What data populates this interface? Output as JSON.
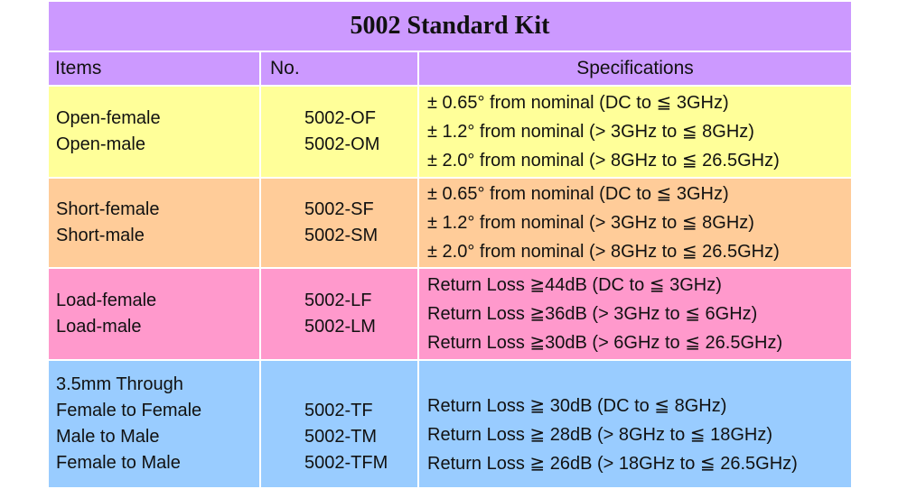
{
  "title": "5002 Standard Kit",
  "headers": {
    "items": "Items",
    "no": "No.",
    "specifications": "Specifications"
  },
  "rows": [
    {
      "color": "#ffff99",
      "items": [
        "Open-female",
        "Open-male"
      ],
      "no": [
        "5002-OF",
        "5002-OM"
      ],
      "specs": [
        "± 0.65° from nominal (DC to ≦ 3GHz)",
        "± 1.2°  from nominal (> 3GHz to ≦ 8GHz)",
        "± 2.0°  from nominal (> 8GHz to ≦ 26.5GHz)"
      ]
    },
    {
      "color": "#ffcc99",
      "items": [
        "Short-female",
        "Short-male"
      ],
      "no": [
        "5002-SF",
        "5002-SM"
      ],
      "specs": [
        "± 0.65° from nominal (DC to ≦ 3GHz)",
        "± 1.2°  from nominal (> 3GHz to ≦ 8GHz)",
        "± 2.0°  from nominal (> 8GHz to ≦ 26.5GHz)"
      ]
    },
    {
      "color": "#ff99cc",
      "items": [
        "Load-female",
        "Load-male"
      ],
      "no": [
        "5002-LF",
        "5002-LM"
      ],
      "specs": [
        "Return Loss ≧44dB (DC to ≦ 3GHz)",
        "Return Loss ≧36dB (> 3GHz to ≦ 6GHz)",
        "Return Loss ≧30dB (> 6GHz to ≦ 26.5GHz)"
      ]
    },
    {
      "color": "#99ccff",
      "items": [
        "3.5mm Through",
        "Female to Female",
        "Male to Male",
        "Female to Male"
      ],
      "no": [
        "5002-TF",
        "5002-TM",
        "5002-TFM"
      ],
      "specs": [
        "Return Loss ≧ 30dB (DC to ≦ 8GHz)",
        "Return Loss ≧ 28dB (> 8GHz to ≦ 18GHz)",
        "Return Loss ≧ 26dB (> 18GHz to ≦ 26.5GHz)"
      ]
    }
  ]
}
